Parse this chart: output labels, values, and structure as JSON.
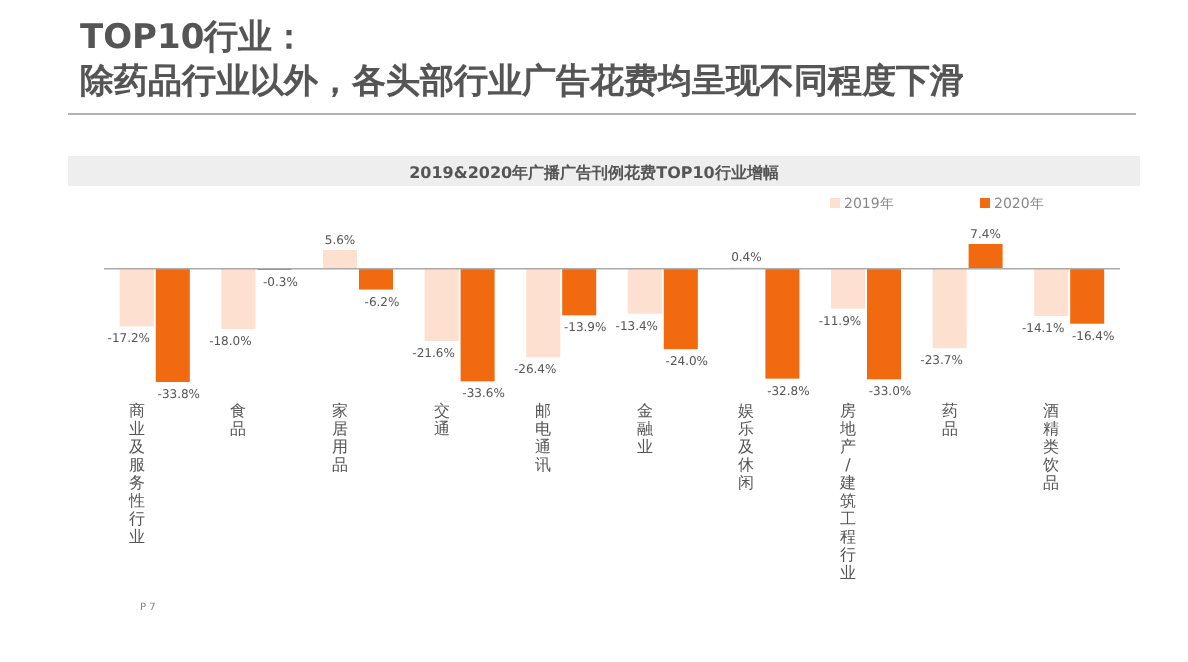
{
  "chart_data": {
    "type": "bar",
    "title": "TOP10行业：",
    "subtitle": "除药品行业以外，各头部行业广告花费均呈现不同程度下滑",
    "categories": [
      "商业及服务性行业",
      "食品",
      "家居用品",
      "交通",
      "邮电通讯",
      "金融业",
      "娱乐及休闲",
      "房地产/建筑工程行业",
      "药品",
      "酒精类饮品"
    ],
    "series": [
      {
        "name": "2019年",
        "color": "#fde0cf",
        "values": [
          -17.2,
          -18.0,
          5.6,
          -21.6,
          -26.4,
          -13.4,
          0.4,
          -11.9,
          -23.7,
          -14.1
        ],
        "value_labels": [
          "-17.2%",
          "-18.0%",
          "5.6%",
          "-21.6%",
          "-26.4%",
          "-13.4%",
          "0.4%",
          "-11.9%",
          "-23.7%",
          "-14.1%"
        ]
      },
      {
        "name": "2020年",
        "color": "#f26a0f",
        "values": [
          -33.8,
          -0.3,
          -6.2,
          -33.6,
          -13.9,
          -24.0,
          -32.8,
          -33.0,
          7.4,
          -16.4
        ],
        "value_labels": [
          "-33.8%",
          "-0.3%",
          "-6.2%",
          "-33.6%",
          "-13.9%",
          "-24.0%",
          "-32.8%",
          "-33.0%",
          "7.4%",
          "-16.4%"
        ]
      }
    ],
    "legend": "top right",
    "annotations": [
      "2019&2020年广播广告刊例花费TOP10行业增幅",
      "P 7"
    ]
  }
}
